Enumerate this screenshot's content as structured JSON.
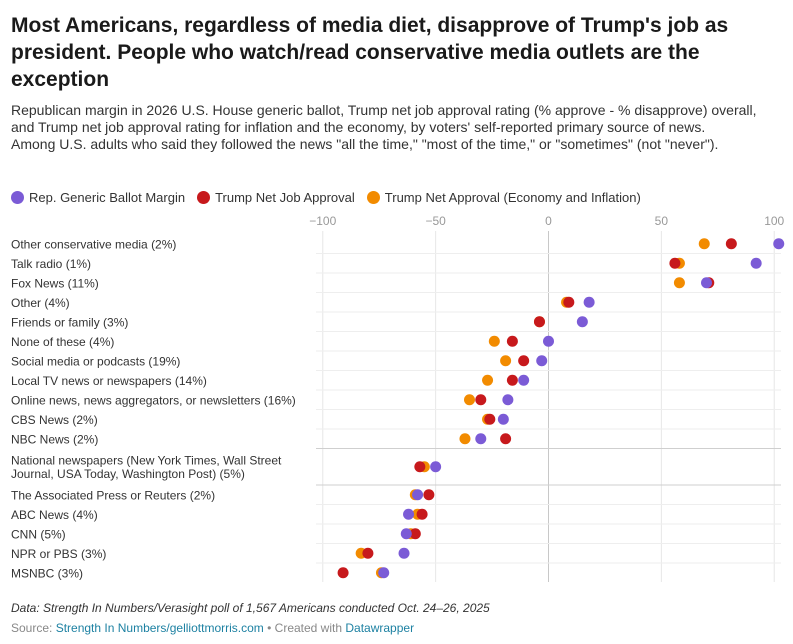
{
  "title": "Most Americans, regardless of media diet, disapprove of Trump's job as president. People who watch/read conservative media outlets are the exception",
  "subtitle_lines": [
    "Republican margin in 2026 U.S. House generic ballot, Trump net job approval rating (% approve - % disapprove) overall, and Trump net job approval rating for inflation and the economy, by voters' self-reported primary source of news.",
    "Among U.S. adults who said they followed the news \"all the time,\" \"most of the time,\" or \"sometimes\" (not \"never\")."
  ],
  "colors": {
    "generic_ballot": "#7b5bd6",
    "job_approval": "#c7191c",
    "economy": "#f28b00"
  },
  "chart_data": {
    "type": "scatter",
    "xlim": [
      -103,
      103
    ],
    "x_ticks": [
      -100,
      -50,
      0,
      50,
      100
    ],
    "x_tick_labels": [
      "−100",
      "−50",
      "0",
      "50",
      "100"
    ],
    "legend_position": "top",
    "series": [
      {
        "name": "Rep. Generic Ballot Margin",
        "color": "#7b5bd6"
      },
      {
        "name": "Trump Net Job Approval",
        "color": "#c7191c"
      },
      {
        "name": "Trump Net Approval (Economy and Inflation)",
        "color": "#f28b00"
      }
    ],
    "categories": [
      {
        "label": [
          "Other conservative media (2%)"
        ],
        "ballot": 102,
        "job": 81,
        "econ": 69
      },
      {
        "label": [
          "Talk radio (1%)"
        ],
        "ballot": 92,
        "job": 56,
        "econ": 58
      },
      {
        "label": [
          "Fox News (11%)"
        ],
        "ballot": 70,
        "job": 71,
        "econ": 58
      },
      {
        "label": [
          "Other (4%)"
        ],
        "ballot": 18,
        "job": 9,
        "econ": 8
      },
      {
        "label": [
          "Friends or family (3%)"
        ],
        "ballot": 15,
        "job": -4,
        "econ": -4
      },
      {
        "label": [
          "None of these (4%)"
        ],
        "ballot": 0,
        "job": -16,
        "econ": -24
      },
      {
        "label": [
          "Social media or podcasts (19%)"
        ],
        "ballot": -3,
        "job": -11,
        "econ": -19
      },
      {
        "label": [
          "Local TV news or newspapers (14%)"
        ],
        "ballot": -11,
        "job": -16,
        "econ": -27
      },
      {
        "label": [
          "Online news, news aggregators, or newsletters (16%)"
        ],
        "ballot": -18,
        "job": -30,
        "econ": -35
      },
      {
        "label": [
          "CBS News (2%)"
        ],
        "ballot": -20,
        "job": -26,
        "econ": -27
      },
      {
        "label": [
          "NBC News (2%)"
        ],
        "ballot": -30,
        "job": -19,
        "econ": -37
      },
      {
        "label": [
          "National newspapers (New York Times, Wall Street",
          "Journal, USA Today, Washington Post) (5%)"
        ],
        "ballot": -50,
        "job": -57,
        "econ": -55
      },
      {
        "label": [
          "The Associated Press or Reuters (2%)"
        ],
        "ballot": -58,
        "job": -53,
        "econ": -59
      },
      {
        "label": [
          "ABC News (4%)"
        ],
        "ballot": -62,
        "job": -56,
        "econ": -58
      },
      {
        "label": [
          "CNN (5%)"
        ],
        "ballot": -63,
        "job": -59,
        "econ": -61
      },
      {
        "label": [
          "NPR or PBS (3%)"
        ],
        "ballot": -64,
        "job": -80,
        "econ": -83
      },
      {
        "label": [
          "MSNBC (3%)"
        ],
        "ballot": -73,
        "job": -91,
        "econ": -74
      }
    ]
  },
  "footer": {
    "note": "Data: Strength In Numbers/Verasight poll of 1,567 Americans conducted Oct. 24–26, 2025",
    "source_prefix": "Source: ",
    "source_link": "Strength In Numbers/gelliottmorris.com",
    "separator": " • Created with ",
    "tool": "Datawrapper"
  }
}
